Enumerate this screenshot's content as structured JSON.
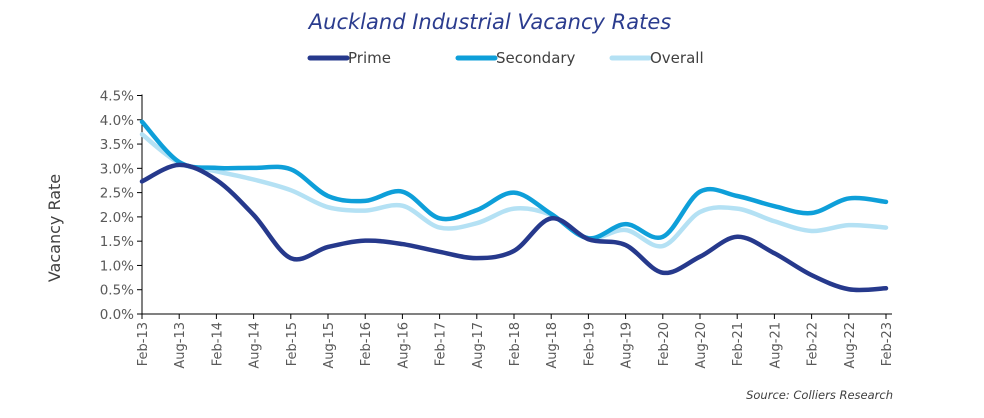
{
  "chart_data": {
    "type": "line",
    "title": "Auckland Industrial Vacancy Rates",
    "ylabel": "Vacancy Rate",
    "xlabel": "",
    "ylim": [
      0,
      4.5
    ],
    "y_ticks": [
      "0.0%",
      "0.5%",
      "1.0%",
      "1.5%",
      "2.0%",
      "2.5%",
      "3.0%",
      "3.5%",
      "4.0%",
      "4.5%"
    ],
    "categories": [
      "Feb-13",
      "Aug-13",
      "Feb-14",
      "Aug-14",
      "Feb-15",
      "Aug-15",
      "Feb-16",
      "Aug-16",
      "Feb-17",
      "Aug-17",
      "Feb-18",
      "Aug-18",
      "Feb-19",
      "Aug-19",
      "Feb-20",
      "Aug-20",
      "Feb-21",
      "Aug-21",
      "Feb-22",
      "Aug-22",
      "Feb-23"
    ],
    "legend_position": "top",
    "grid": false,
    "series": [
      {
        "name": "Prime",
        "color": "#26398c",
        "values": [
          2.73,
          3.07,
          2.76,
          2.04,
          1.15,
          1.38,
          1.51,
          1.44,
          1.28,
          1.15,
          1.3,
          1.97,
          1.54,
          1.42,
          0.85,
          1.18,
          1.59,
          1.25,
          0.8,
          0.51,
          0.53
        ]
      },
      {
        "name": "Secondary",
        "color": "#0e9fd9",
        "values": [
          3.96,
          3.13,
          3.01,
          3.01,
          2.98,
          2.43,
          2.33,
          2.52,
          1.97,
          2.14,
          2.5,
          2.06,
          1.56,
          1.85,
          1.59,
          2.52,
          2.43,
          2.22,
          2.08,
          2.38,
          2.31
        ]
      },
      {
        "name": "Overall",
        "color": "#b4e1f4",
        "values": [
          3.7,
          3.11,
          2.94,
          2.77,
          2.55,
          2.2,
          2.13,
          2.23,
          1.78,
          1.87,
          2.17,
          2.04,
          1.56,
          1.73,
          1.4,
          2.1,
          2.17,
          1.91,
          1.71,
          1.83,
          1.78
        ]
      }
    ],
    "source": "Source: Colliers Research"
  }
}
